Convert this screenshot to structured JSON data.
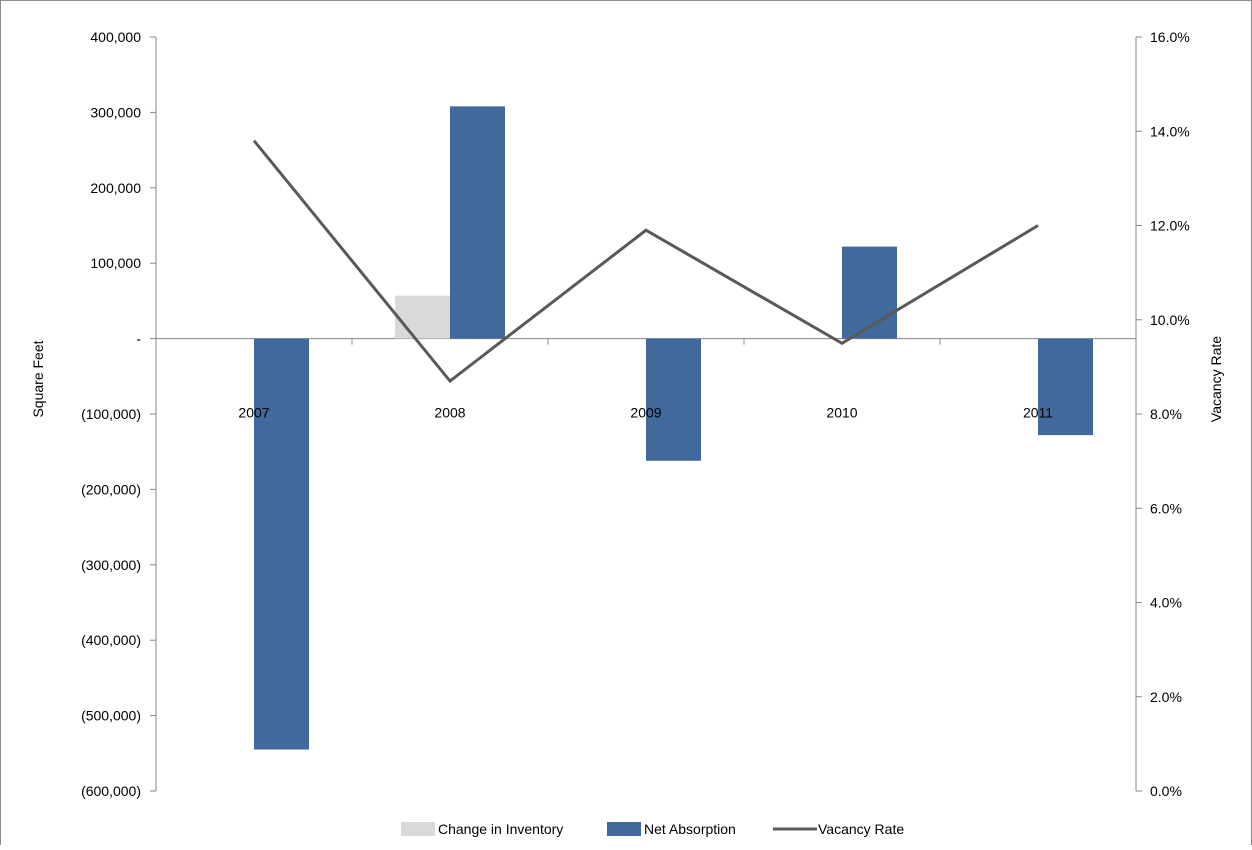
{
  "chart_data": {
    "type": "bar",
    "categories": [
      "2007",
      "2008",
      "2009",
      "2010",
      "2011"
    ],
    "series": [
      {
        "name": "Change in Inventory",
        "type": "bar",
        "axis": "left",
        "color": "#d9d9d9",
        "values": [
          0,
          57000,
          0,
          0,
          0
        ]
      },
      {
        "name": "Net Absorption",
        "type": "bar",
        "axis": "left",
        "color": "#41699c",
        "values": [
          -545000,
          308000,
          -162000,
          122000,
          -128000
        ]
      },
      {
        "name": "Vacancy Rate",
        "type": "line",
        "axis": "right",
        "color": "#595959",
        "values": [
          0.138,
          0.087,
          0.119,
          0.095,
          0.12
        ]
      }
    ],
    "ylabel": "Square Feet",
    "y2label": "Vacancy Rate",
    "ylim": [
      -600000,
      400000
    ],
    "y2lim": [
      0,
      0.16
    ],
    "yticks": [
      {
        "value": 400000,
        "label": "400,000"
      },
      {
        "value": 300000,
        "label": "300,000"
      },
      {
        "value": 200000,
        "label": "200,000"
      },
      {
        "value": 100000,
        "label": "100,000"
      },
      {
        "value": 0,
        "label": "-"
      },
      {
        "value": -100000,
        "label": "(100,000)"
      },
      {
        "value": -200000,
        "label": "(200,000)"
      },
      {
        "value": -300000,
        "label": "(300,000)"
      },
      {
        "value": -400000,
        "label": "(400,000)"
      },
      {
        "value": -500000,
        "label": "(500,000)"
      },
      {
        "value": -600000,
        "label": "(600,000)"
      }
    ],
    "y2ticks": [
      {
        "value": 0.16,
        "label": "16.0%"
      },
      {
        "value": 0.14,
        "label": "14.0%"
      },
      {
        "value": 0.12,
        "label": "12.0%"
      },
      {
        "value": 0.1,
        "label": "10.0%"
      },
      {
        "value": 0.08,
        "label": "8.0%"
      },
      {
        "value": 0.06,
        "label": "6.0%"
      },
      {
        "value": 0.04,
        "label": "4.0%"
      },
      {
        "value": 0.02,
        "label": "2.0%"
      },
      {
        "value": 0.0,
        "label": "0.0%"
      }
    ],
    "grid": false,
    "legend_position": "bottom"
  }
}
